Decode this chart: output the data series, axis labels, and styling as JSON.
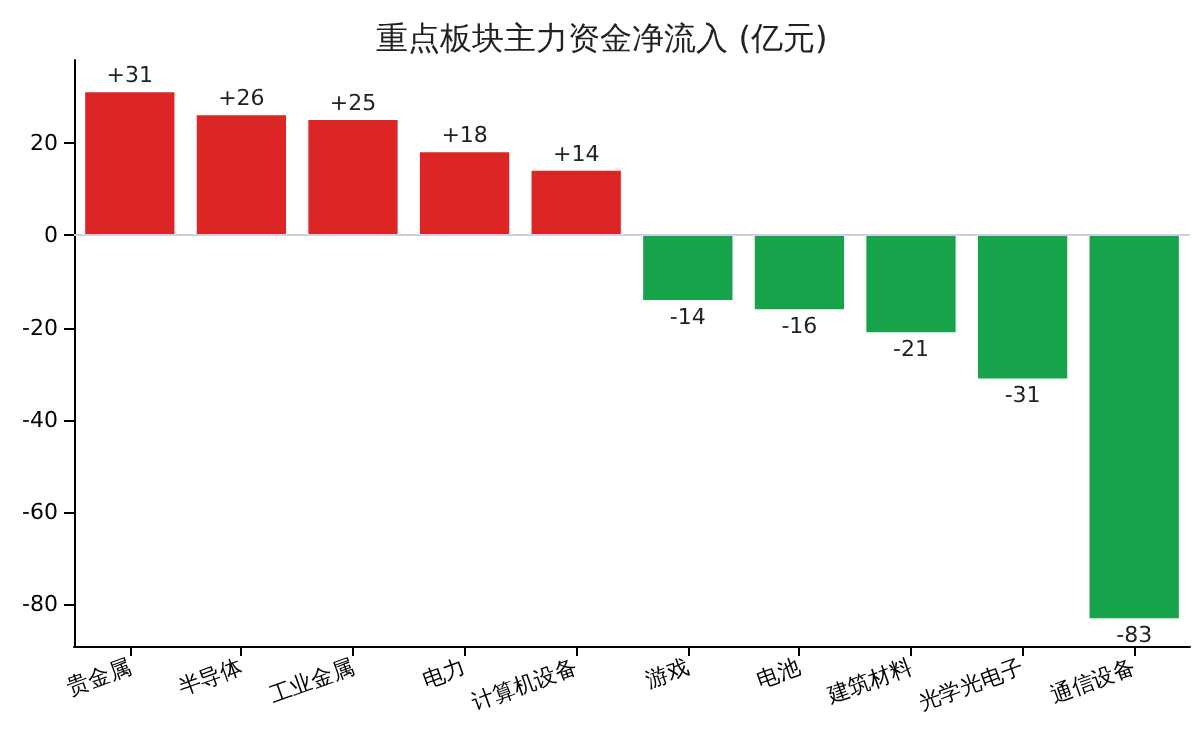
{
  "chart_data": {
    "type": "bar",
    "title": "重点板块主力资金净流入 (亿元)",
    "categories": [
      "贵金属",
      "半导体",
      "工业金属",
      "电力",
      "计算机设备",
      "游戏",
      "电池",
      "建筑材料",
      "光学光电子",
      "通信设备"
    ],
    "values": [
      31,
      26,
      25,
      18,
      14,
      -14,
      -16,
      -21,
      -31,
      -83
    ],
    "colors": [
      "#dc2626",
      "#dc2626",
      "#dc2626",
      "#dc2626",
      "#dc2626",
      "#16a34a",
      "#16a34a",
      "#16a34a",
      "#16a34a",
      "#16a34a"
    ],
    "value_labels": [
      "+31",
      "+26",
      "+25",
      "+18",
      "+14",
      "-14",
      "-16",
      "-21",
      "-31",
      "-83"
    ],
    "ylim": [
      -89,
      38
    ],
    "yticks": [
      -80,
      -60,
      -40,
      -20,
      0,
      20
    ],
    "ref_lines": [
      {
        "axis": "y",
        "value": 0,
        "label": null,
        "color": "#c8d4e3"
      }
    ],
    "grid": false
  }
}
